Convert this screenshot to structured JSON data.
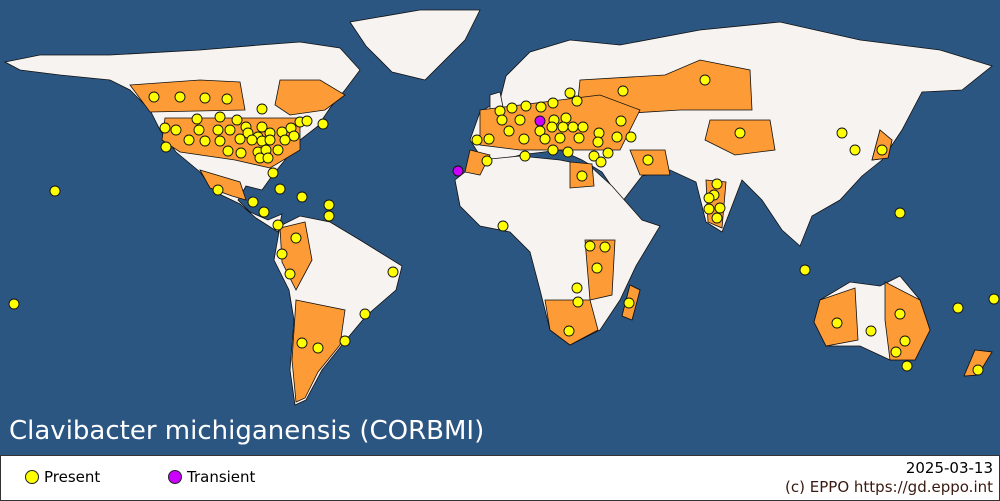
{
  "map": {
    "title": "Clavibacter michiganensis (CORBMI)",
    "colors": {
      "ocean": "#2c5682",
      "land": "#f6f3f0",
      "present_region": "#fd9b37",
      "present_point": "#ffff00",
      "transient_point": "#cc00ff"
    }
  },
  "legend": {
    "items": [
      {
        "label": "Present",
        "color": "#ffff00",
        "icon": "circle-icon"
      },
      {
        "label": "Transient",
        "color": "#cc00ff",
        "icon": "circle-icon"
      }
    ],
    "date": "2025-03-13",
    "copyright": "(c) EPPO https://gd.eppo.int"
  }
}
